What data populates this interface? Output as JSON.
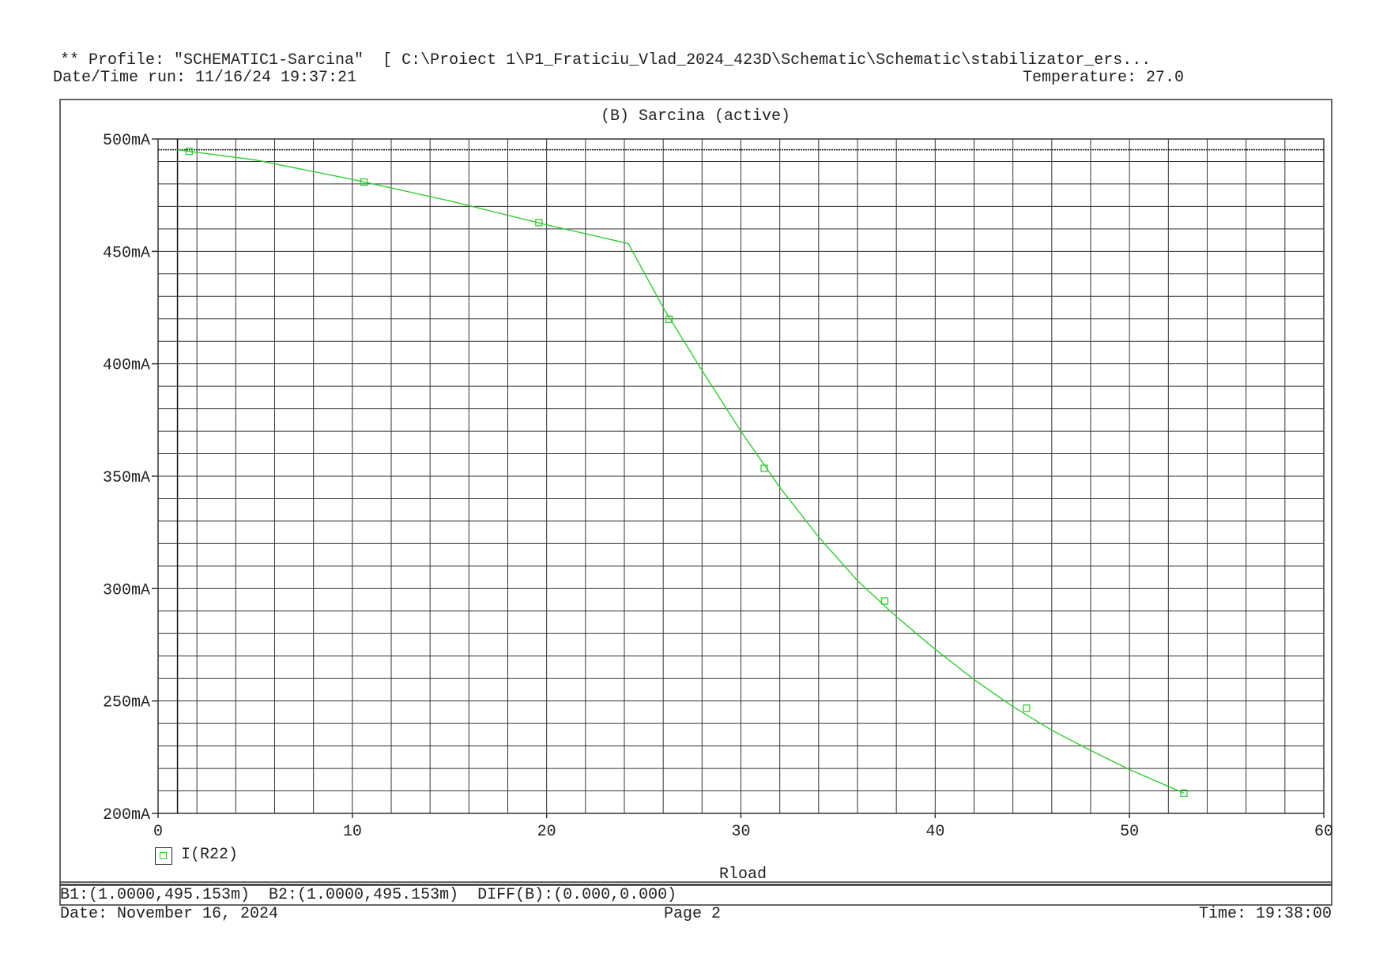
{
  "header": {
    "profile_line": "** Profile: \"SCHEMATIC1-Sarcina\"  [ C:\\Proiect 1\\P1_Fraticiu_Vlad_2024_423D\\Schematic\\Schematic\\stabilizator_ers...",
    "datetime_run": "Date/Time run: 11/16/24 19:37:21",
    "temperature": "Temperature: 27.0"
  },
  "chart_data": {
    "type": "line",
    "title": "(B) Sarcina (active)",
    "xlabel": "Rload",
    "ylabel": "",
    "xlim": [
      0,
      60
    ],
    "ylim": [
      200,
      500
    ],
    "x_ticks": [
      "0",
      "10",
      "20",
      "30",
      "40",
      "50",
      "60"
    ],
    "y_ticks": [
      "200mA",
      "250mA",
      "300mA",
      "350mA",
      "400mA",
      "450mA",
      "500mA"
    ],
    "y_unit": "mA",
    "grid": true,
    "cursor_x": 1.0,
    "series": [
      {
        "name": "I(R22)",
        "color": "#33cc33",
        "marker": "square",
        "x": [
          1.0,
          5.0,
          10.0,
          15.0,
          20.0,
          24.2,
          26.0,
          28.0,
          30.0,
          32.0,
          34.0,
          36.0,
          38.0,
          40.0,
          42.0,
          44.0,
          46.0,
          48.0,
          50.0,
          52.0,
          52.8
        ],
        "y": [
          495.2,
          490.7,
          482.0,
          472.5,
          461.8,
          453.5,
          425.0,
          397.0,
          370.0,
          345.0,
          323.0,
          303.5,
          287.5,
          273.0,
          259.5,
          247.5,
          237.0,
          228.0,
          219.5,
          212.0,
          209.0
        ],
        "markers_x": [
          1.6,
          10.6,
          19.6,
          26.3,
          31.2,
          37.4,
          44.7,
          52.8
        ],
        "markers_y": [
          494.5,
          480.8,
          462.8,
          419.8,
          353.5,
          294.5,
          246.8,
          209.0
        ]
      }
    ]
  },
  "legend": {
    "label": "I(R22)"
  },
  "cursor_info": "B1:(1.0000,495.153m)  B2:(1.0000,495.153m)  DIFF(B):(0.000,0.000)",
  "footer": {
    "date": "Date: November 16, 2024",
    "page": "Page 2",
    "time": "Time: 19:38:00"
  }
}
